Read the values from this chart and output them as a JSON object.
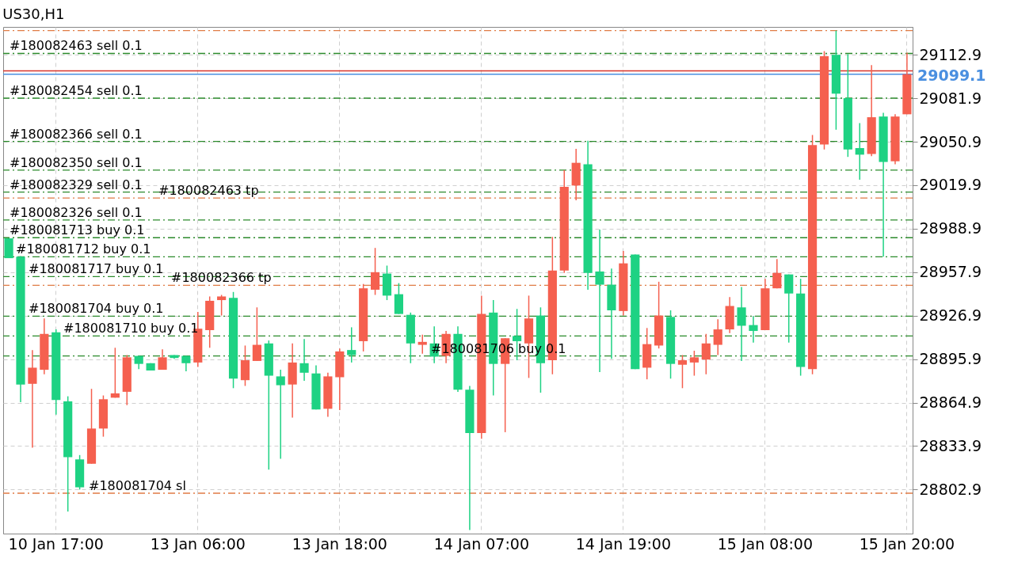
{
  "chart_data": {
    "type": "candlestick",
    "title": "US30,H1",
    "categories": [
      null,
      null,
      null,
      null,
      "10 Jan 17:00",
      null,
      null,
      null,
      null,
      null,
      null,
      null,
      null,
      null,
      null,
      null,
      "13 Jan 06:00",
      null,
      null,
      null,
      null,
      null,
      null,
      null,
      null,
      null,
      null,
      null,
      "13 Jan 18:00",
      null,
      null,
      null,
      null,
      null,
      null,
      null,
      null,
      null,
      null,
      null,
      "14 Jan 07:00",
      null,
      null,
      null,
      null,
      null,
      null,
      null,
      null,
      null,
      null,
      null,
      "14 Jan 19:00",
      null,
      null,
      null,
      null,
      null,
      null,
      null,
      null,
      null,
      null,
      null,
      "15 Jan 08:00",
      null,
      null,
      null,
      null,
      null,
      null,
      null,
      null,
      null,
      null,
      null,
      "15 Jan 20:00"
    ],
    "ohlc": [
      [
        28982.0,
        28982.0,
        28967.9,
        28967.9
      ],
      [
        28968.9,
        28969.4,
        28865.2,
        28877.8
      ],
      [
        28878.3,
        28902.4,
        28832.8,
        28889.8
      ],
      [
        28888.3,
        28924.9,
        28885.1,
        28913.9
      ],
      [
        28915.0,
        28917.1,
        28856.3,
        28866.8
      ],
      [
        28865.8,
        28869.4,
        28787.2,
        28826.0
      ],
      [
        28824.4,
        28827.5,
        28802.9,
        28804.5
      ],
      [
        28821.3,
        28874.7,
        28821.3,
        28846.4
      ],
      [
        28846.4,
        28870.0,
        28840.6,
        28867.3
      ],
      [
        28868.4,
        28904.0,
        28868.4,
        28871.5
      ],
      [
        28872.6,
        28898.8,
        28863.1,
        28897.2
      ],
      [
        28898.2,
        28898.2,
        28888.8,
        28892.5
      ],
      [
        28893.0,
        28893.0,
        28887.8,
        28887.8
      ],
      [
        28888.3,
        28902.9,
        28888.3,
        28897.2
      ],
      [
        28898.8,
        28898.8,
        28896.1,
        28896.7
      ],
      [
        28898.2,
        28898.2,
        28887.2,
        28893.0
      ],
      [
        28893.5,
        28929.6,
        28890.4,
        28917.6
      ],
      [
        28916.6,
        28940.6,
        28904.0,
        28937.5
      ],
      [
        28938.0,
        28941.7,
        28927.0,
        28940.6
      ],
      [
        28939.6,
        28943.8,
        28875.2,
        28882.0
      ],
      [
        28880.9,
        28905.6,
        28876.8,
        28895.1
      ],
      [
        28894.6,
        28932.8,
        28894.6,
        28906.1
      ],
      [
        28907.1,
        28909.2,
        28817.1,
        28884.1
      ],
      [
        28883.6,
        28888.3,
        28824.9,
        28877.3
      ],
      [
        28877.8,
        28907.1,
        28854.2,
        28893.5
      ],
      [
        28893.0,
        28910.3,
        28880.4,
        28886.2
      ],
      [
        28885.7,
        28891.4,
        28860.0,
        28860.0
      ],
      [
        28860.5,
        28886.2,
        28854.8,
        28883.6
      ],
      [
        28883.0,
        28903.5,
        28859.5,
        28901.4
      ],
      [
        28902.4,
        28918.6,
        28893.5,
        28898.8
      ],
      [
        28908.7,
        28949.5,
        28901.4,
        28946.4
      ],
      [
        28945.4,
        28975.2,
        28941.7,
        28957.9
      ],
      [
        28956.9,
        28962.6,
        28938.0,
        28941.2
      ],
      [
        28942.2,
        28950.1,
        28928.1,
        28928.1
      ],
      [
        28927.5,
        28929.1,
        28893.0,
        28907.1
      ],
      [
        28906.1,
        28913.4,
        28899.8,
        28908.2
      ],
      [
        28907.1,
        28919.2,
        28893.0,
        28897.7
      ],
      [
        28898.2,
        28916.0,
        28893.0,
        28913.9
      ],
      [
        28913.9,
        28919.2,
        28872.6,
        28874.1
      ],
      [
        28874.1,
        28876.8,
        28774.1,
        28843.2
      ],
      [
        28843.2,
        28941.2,
        28839.1,
        28928.1
      ],
      [
        28929.1,
        28938.0,
        28870.0,
        28892.5
      ],
      [
        28892.5,
        28910.8,
        28843.8,
        28910.8
      ],
      [
        28912.4,
        28931.7,
        28895.1,
        28908.7
      ],
      [
        28907.1,
        28941.2,
        28882.5,
        28924.9
      ],
      [
        28927.0,
        28932.8,
        28872.0,
        28893.0
      ],
      [
        28895.1,
        28983.1,
        28885.1,
        28959.0
      ],
      [
        28959.0,
        29030.7,
        28957.4,
        29018.7
      ],
      [
        29019.7,
        29045.9,
        29009.2,
        29035.9
      ],
      [
        29034.9,
        29051.6,
        28945.4,
        28957.4
      ],
      [
        28958.4,
        28988.3,
        28886.7,
        28949.0
      ],
      [
        28949.0,
        28960.5,
        28896.1,
        28930.7
      ],
      [
        28930.2,
        28973.1,
        28927.0,
        28964.2
      ],
      [
        28970.5,
        28970.5,
        28888.8,
        28888.8
      ],
      [
        28889.8,
        28918.1,
        28881.5,
        28906.6
      ],
      [
        28905.6,
        28951.1,
        28903.5,
        28927.0
      ],
      [
        28926.0,
        28930.7,
        28882.0,
        28892.5
      ],
      [
        28891.9,
        28898.8,
        28875.2,
        28895.1
      ],
      [
        28893.5,
        28901.9,
        28884.1,
        28897.2
      ],
      [
        28895.6,
        28913.9,
        28885.1,
        28907.1
      ],
      [
        28906.1,
        28924.4,
        28898.8,
        28917.1
      ],
      [
        28917.1,
        28940.1,
        28914.5,
        28933.8
      ],
      [
        28932.8,
        28947.4,
        28894.6,
        28919.7
      ],
      [
        28920.2,
        28926.5,
        28907.7,
        28916.0
      ],
      [
        28916.6,
        28953.2,
        28916.6,
        28946.4
      ],
      [
        28946.4,
        28967.3,
        28946.4,
        28957.4
      ],
      [
        28956.3,
        28956.3,
        28907.7,
        28942.7
      ],
      [
        28942.7,
        28953.2,
        28884.1,
        28890.4
      ],
      [
        28888.8,
        29055.8,
        28885.1,
        29048.5
      ],
      [
        29049.0,
        29115.5,
        29045.4,
        29111.9
      ],
      [
        29112.9,
        29130.2,
        29059.5,
        29085.2
      ],
      [
        29082.0,
        29113.4,
        29040.1,
        29045.4
      ],
      [
        29046.4,
        29064.2,
        29023.9,
        29041.7
      ],
      [
        29042.2,
        29105.6,
        29040.6,
        29068.4
      ],
      [
        29068.9,
        29071.5,
        28968.9,
        29036.5
      ],
      [
        29037.0,
        29070.5,
        29034.9,
        29068.9
      ],
      [
        29070.5,
        29114.5,
        29070.5,
        29099.1
      ]
    ],
    "colors": [
      "#1ed283",
      "#1ed283",
      "#f5604f",
      "#f5604f",
      "#1ed283",
      "#1ed283",
      "#1ed283",
      "#f5604f",
      "#f5604f",
      "#f5604f",
      "#f5604f",
      "#1ed283",
      "#1ed283",
      "#f5604f",
      "#1ed283",
      "#1ed283",
      "#f5604f",
      "#f5604f",
      "#f5604f",
      "#1ed283",
      "#f5604f",
      "#f5604f",
      "#1ed283",
      "#1ed283",
      "#f5604f",
      "#1ed283",
      "#1ed283",
      "#f5604f",
      "#f5604f",
      "#1ed283",
      "#f5604f",
      "#f5604f",
      "#1ed283",
      "#1ed283",
      "#1ed283",
      "#f5604f",
      "#1ed283",
      "#f5604f",
      "#1ed283",
      "#1ed283",
      "#f5604f",
      "#1ed283",
      "#f5604f",
      "#1ed283",
      "#f5604f",
      "#1ed283",
      "#f5604f",
      "#f5604f",
      "#f5604f",
      "#1ed283",
      "#1ed283",
      "#1ed283",
      "#f5604f",
      "#1ed283",
      "#f5604f",
      "#f5604f",
      "#1ed283",
      "#f5604f",
      "#f5604f",
      "#f5604f",
      "#f5604f",
      "#f5604f",
      "#1ed283",
      "#1ed283",
      "#f5604f",
      "#f5604f",
      "#1ed283",
      "#1ed283",
      "#f5604f",
      "#f5604f",
      "#1ed283",
      "#1ed283",
      "#1ed283",
      "#f5604f",
      "#1ed283",
      "#f5604f",
      "#f5604f"
    ],
    "ylim": [
      28771.5,
      29132.8
    ],
    "yticks": [
      28802.9,
      28833.9,
      28864.9,
      28895.9,
      28926.9,
      28957.9,
      28988.9,
      29019.9,
      29050.9,
      29081.9,
      29112.9
    ],
    "grid": true,
    "ref_lines": [
      {
        "axis": "y",
        "value": 29130.2,
        "color": "#e07b45",
        "line_style": "dashed"
      },
      {
        "axis": "y",
        "value": 29113.9,
        "label": "#180082463 sell 0.1",
        "color": "#2b8a2b",
        "line_style": "dashed"
      },
      {
        "axis": "y",
        "value": 29101.4,
        "color": "#d9342b",
        "line_style": "solid"
      },
      {
        "axis": "y",
        "value": 29099.1,
        "label": "29099.1",
        "color": "#4a8fe0",
        "line_style": "solid"
      },
      {
        "axis": "y",
        "value": 29082.0,
        "label": "#180082454 sell 0.1",
        "color": "#2b8a2b",
        "line_style": "dashed"
      },
      {
        "axis": "y",
        "value": 29051.1,
        "label": "#180082366 sell 0.1",
        "color": "#2b8a2b",
        "line_style": "dashed"
      },
      {
        "axis": "y",
        "value": 29030.7,
        "label": "#180082350 sell 0.1",
        "color": "#2b8a2b",
        "line_style": "dashed"
      },
      {
        "axis": "y",
        "value": 29015.0,
        "label": "#180082329 sell 0.1",
        "color": "#2b8a2b",
        "line_style": "dashed"
      },
      {
        "axis": "y",
        "value": 29010.8,
        "label": "#180082463 tp",
        "color": "#e07b45",
        "line_style": "dashed"
      },
      {
        "axis": "y",
        "value": 28995.1,
        "label": "#180082326 sell 0.1",
        "color": "#2b8a2b",
        "line_style": "dashed"
      },
      {
        "axis": "y",
        "value": 28982.5,
        "label": "#180081713 buy 0.1",
        "color": "#2b8a2b",
        "line_style": "dashed"
      },
      {
        "axis": "y",
        "value": 28968.9,
        "label": "#180081712 buy 0.1",
        "color": "#2b8a2b",
        "line_style": "dashed"
      },
      {
        "axis": "y",
        "value": 28954.8,
        "label": "#180081717 buy 0.1",
        "color": "#2b8a2b",
        "line_style": "dashed"
      },
      {
        "axis": "y",
        "value": 28948.5,
        "label": "#180082366 tp",
        "color": "#e07b45",
        "line_style": "dashed"
      },
      {
        "axis": "y",
        "value": 28926.5,
        "label": "#180081704 buy 0.1",
        "color": "#2b8a2b",
        "line_style": "dashed"
      },
      {
        "axis": "y",
        "value": 28912.4,
        "label": "#180081710 buy 0.1",
        "color": "#2b8a2b",
        "line_style": "dashed"
      },
      {
        "axis": "y",
        "value": 28898.2,
        "label": "#180081706 buy 0.1",
        "color": "#2b8a2b",
        "line_style": "dashed"
      },
      {
        "axis": "y",
        "value": 28800.3,
        "label": "#180081704 sl",
        "color": "#e07b45",
        "line_style": "dashed"
      }
    ]
  }
}
